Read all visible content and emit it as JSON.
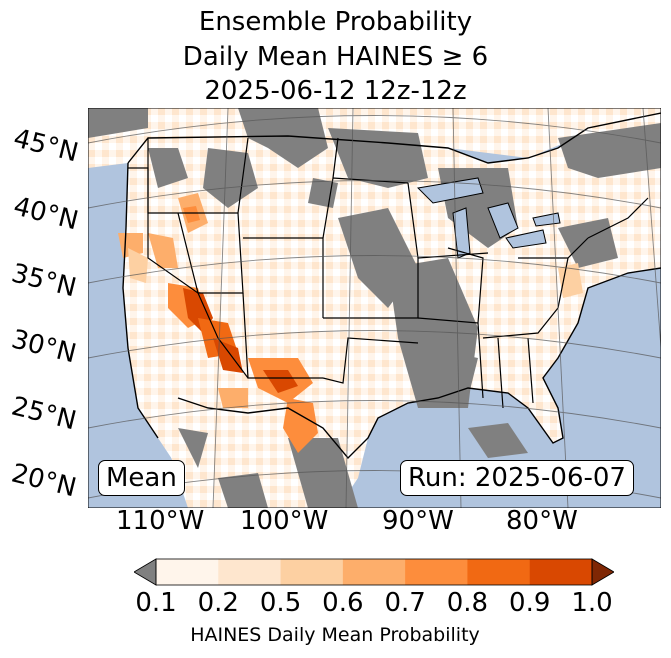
{
  "title": {
    "line1": "Ensemble Probability",
    "line2": "Daily Mean HAINES ≥ 6",
    "line3": "2025-06-12 12z-12z"
  },
  "map": {
    "lat_labels": [
      "45°N",
      "40°N",
      "35°N",
      "30°N",
      "25°N",
      "20°N"
    ],
    "lon_labels": [
      "110°W",
      "100°W",
      "90°W",
      "80°W"
    ],
    "mean_label": "Mean",
    "run_label": "Run: 2025-06-07",
    "colors": {
      "ocean": "#b0c4de",
      "no_data": "#808080",
      "land_low": "#fff5eb"
    }
  },
  "colorbar": {
    "ticks": [
      "0.1",
      "0.2",
      "0.5",
      "0.6",
      "0.7",
      "0.8",
      "0.9",
      "1.0"
    ],
    "colors": [
      "#fff5eb",
      "#fee6ce",
      "#fdd0a2",
      "#fdae6b",
      "#fd8d3c",
      "#f16913",
      "#d94801",
      "#a63603"
    ],
    "under_color": "#808080",
    "over_color": "#7f2704",
    "label": "HAINES Daily Mean Probability"
  }
}
